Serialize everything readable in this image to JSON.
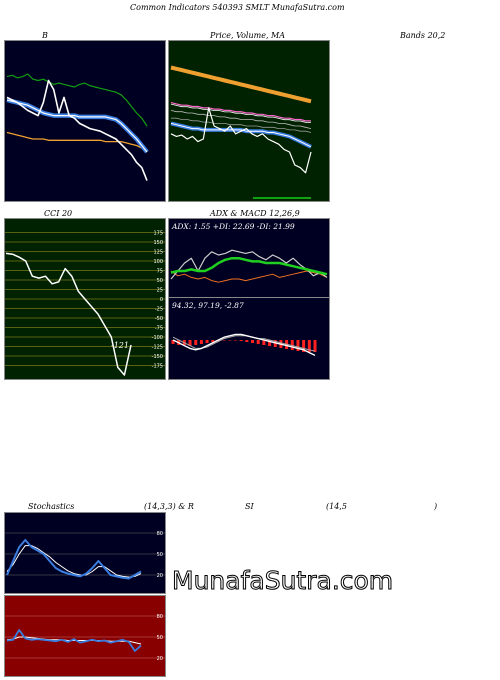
{
  "header": {
    "title": "Common Indicators 540393 SMLT MunafaSutra.com"
  },
  "titles": {
    "bands_left": "B",
    "bands_mid": "Price, Volume, MA",
    "bands_right": "Bands 20,2",
    "cci": "CCI 20",
    "adx_macd": "ADX & MACD 12,26,9",
    "stoch_a": "Stochastics",
    "stoch_b": "(14,3,3) & R",
    "stoch_c": "SI",
    "stoch_d": "(14,5",
    "stoch_e": ")"
  },
  "watermark": "MunafaSutra.com",
  "colors": {
    "panel_navy": "#000022",
    "panel_green": "#002200",
    "panel_red": "#880000",
    "orange": "#f0a030",
    "blue": "#3a7de0",
    "green": "#10a010"
  },
  "chart_data": [
    {
      "type": "line",
      "name": "bollinger-bands",
      "series": [
        {
          "key": "upper",
          "values": [
            88,
            89,
            87,
            88,
            90,
            86,
            85,
            86,
            84,
            82,
            83,
            82,
            81,
            80,
            82,
            83,
            81,
            80,
            79,
            78,
            77,
            76,
            74,
            70,
            65,
            60,
            56,
            50
          ]
        },
        {
          "key": "price",
          "values": [
            72,
            70,
            68,
            65,
            62,
            60,
            58,
            68,
            85,
            78,
            60,
            72,
            58,
            56,
            52,
            50,
            48,
            47,
            46,
            44,
            42,
            40,
            36,
            32,
            28,
            22,
            18,
            8
          ]
        },
        {
          "key": "mid",
          "values": [
            70,
            69,
            68,
            67,
            66,
            64,
            62,
            60,
            59,
            58,
            58,
            58,
            58,
            58,
            57,
            57,
            57,
            57,
            57,
            57,
            56,
            55,
            52,
            48,
            44,
            40,
            35,
            30
          ]
        },
        {
          "key": "lower",
          "values": [
            45,
            44,
            43,
            42,
            41,
            40,
            40,
            40,
            39,
            39,
            39,
            39,
            39,
            39,
            39,
            39,
            39,
            39,
            39,
            38,
            38,
            38,
            38,
            37,
            36,
            35,
            33,
            30
          ]
        }
      ]
    },
    {
      "type": "line",
      "name": "price-volume-ma",
      "series": [
        {
          "key": "ma_long",
          "values": [
            95,
            94,
            93,
            92,
            91,
            90,
            89,
            88,
            87,
            86,
            85,
            84,
            83,
            82,
            81,
            80,
            79,
            78,
            77,
            76,
            75,
            74,
            73,
            72,
            71,
            70,
            69
          ]
        },
        {
          "key": "ma_mid",
          "values": [
            68,
            67,
            66,
            66,
            65,
            65,
            64,
            64,
            63,
            63,
            62,
            62,
            61,
            61,
            60,
            60,
            59,
            59,
            58,
            58,
            57,
            56,
            56,
            55,
            55,
            54,
            54
          ]
        },
        {
          "key": "ma_a",
          "values": [
            62,
            61,
            61,
            60,
            60,
            59,
            59,
            58,
            58,
            57,
            57,
            56,
            56,
            55,
            55,
            55,
            54,
            54,
            53,
            53,
            52,
            52,
            51,
            50,
            50,
            49,
            48
          ]
        },
        {
          "key": "ma_b",
          "values": [
            56,
            56,
            55,
            55,
            54,
            54,
            53,
            53,
            52,
            52,
            52,
            51,
            51,
            51,
            50,
            50,
            50,
            49,
            49,
            49,
            48,
            48,
            47,
            47,
            46,
            46,
            45
          ]
        },
        {
          "key": "ma_blue",
          "values": [
            52,
            51,
            50,
            49,
            48,
            48,
            47,
            47,
            47,
            47,
            47,
            47,
            47,
            47,
            46,
            46,
            46,
            46,
            45,
            45,
            44,
            43,
            42,
            40,
            38,
            36,
            34
          ]
        },
        {
          "key": "price",
          "values": [
            44,
            42,
            43,
            40,
            42,
            38,
            40,
            64,
            50,
            48,
            46,
            50,
            44,
            46,
            48,
            44,
            42,
            44,
            40,
            38,
            36,
            32,
            30,
            20,
            18,
            14,
            30
          ]
        }
      ]
    },
    {
      "type": "line",
      "name": "cci",
      "values": [
        120,
        118,
        110,
        100,
        60,
        55,
        60,
        40,
        45,
        80,
        60,
        20,
        0,
        -20,
        -40,
        -70,
        -100,
        -180,
        -200,
        -121
      ],
      "last_label": "-121",
      "ylim": [
        -200,
        200
      ],
      "ticks": [
        175,
        150,
        125,
        100,
        75,
        50,
        25,
        0,
        -25,
        -50,
        -75,
        -100,
        -125,
        -150,
        -175
      ]
    },
    {
      "type": "line",
      "name": "adx",
      "label": "ADX: 1.55 +DI: 22.69 -DI: 21.99",
      "series": [
        {
          "key": "adx",
          "values": [
            28,
            30,
            30,
            32,
            30,
            30,
            34,
            40,
            44,
            46,
            46,
            44,
            42,
            42,
            40,
            40,
            40,
            38,
            36,
            34,
            32,
            30,
            28,
            26
          ]
        },
        {
          "key": "plus_di",
          "values": [
            20,
            30,
            40,
            46,
            30,
            46,
            54,
            50,
            52,
            56,
            54,
            52,
            54,
            48,
            44,
            50,
            46,
            40,
            46,
            38,
            32,
            24,
            28,
            22
          ]
        },
        {
          "key": "minus_di",
          "values": [
            30,
            24,
            26,
            22,
            20,
            22,
            18,
            16,
            18,
            20,
            20,
            18,
            20,
            22,
            24,
            26,
            22,
            24,
            26,
            28,
            30,
            28,
            26,
            22
          ]
        }
      ]
    },
    {
      "type": "bar",
      "name": "macd",
      "label": "94.32, 97.19, -2.87",
      "histogram": [
        -4,
        -5,
        -5,
        -6,
        -5,
        -4,
        -3,
        -2,
        -1,
        0,
        0,
        0,
        -1,
        -2,
        -3,
        -4,
        -5,
        -6,
        -7,
        -8,
        -9,
        -10,
        -11,
        -12,
        -12,
        -12
      ],
      "series": [
        {
          "key": "macd",
          "values": [
            0,
            -2,
            -4,
            -6,
            -7,
            -6,
            -4,
            -2,
            0,
            2,
            3,
            4,
            4,
            3,
            2,
            1,
            0,
            -1,
            -2,
            -3,
            -4,
            -5,
            -6,
            -7,
            -9,
            -11
          ]
        },
        {
          "key": "signal",
          "values": [
            2,
            0,
            -2,
            -4,
            -6,
            -6,
            -5,
            -3,
            -1,
            1,
            2,
            3,
            3,
            3,
            2,
            1,
            1,
            0,
            -1,
            -2,
            -3,
            -4,
            -5,
            -6,
            -7,
            -8
          ]
        }
      ]
    },
    {
      "type": "line",
      "name": "stochastics",
      "series": [
        {
          "key": "k",
          "values": [
            20,
            40,
            60,
            70,
            60,
            55,
            50,
            40,
            30,
            25,
            22,
            20,
            18,
            22,
            30,
            40,
            30,
            20,
            18,
            16,
            15,
            20,
            25
          ]
        },
        {
          "key": "d",
          "values": [
            25,
            35,
            50,
            62,
            62,
            58,
            52,
            46,
            38,
            32,
            26,
            22,
            20,
            20,
            25,
            32,
            32,
            26,
            20,
            18,
            17,
            18,
            22
          ]
        }
      ],
      "ticks": [
        80,
        50,
        20
      ]
    },
    {
      "type": "line",
      "name": "rsi",
      "series": [
        {
          "key": "rsi",
          "values": [
            45,
            46,
            60,
            48,
            46,
            47,
            46,
            45,
            44,
            46,
            43,
            47,
            42,
            44,
            46,
            44,
            45,
            42,
            44,
            46,
            43,
            30,
            38
          ]
        },
        {
          "key": "rsi_ma",
          "values": [
            46,
            47,
            50,
            50,
            49,
            48,
            47,
            46,
            46,
            46,
            45,
            45,
            45,
            45,
            45,
            45,
            45,
            44,
            44,
            44,
            44,
            42,
            40
          ]
        }
      ],
      "ticks": [
        80,
        50,
        20
      ]
    }
  ]
}
